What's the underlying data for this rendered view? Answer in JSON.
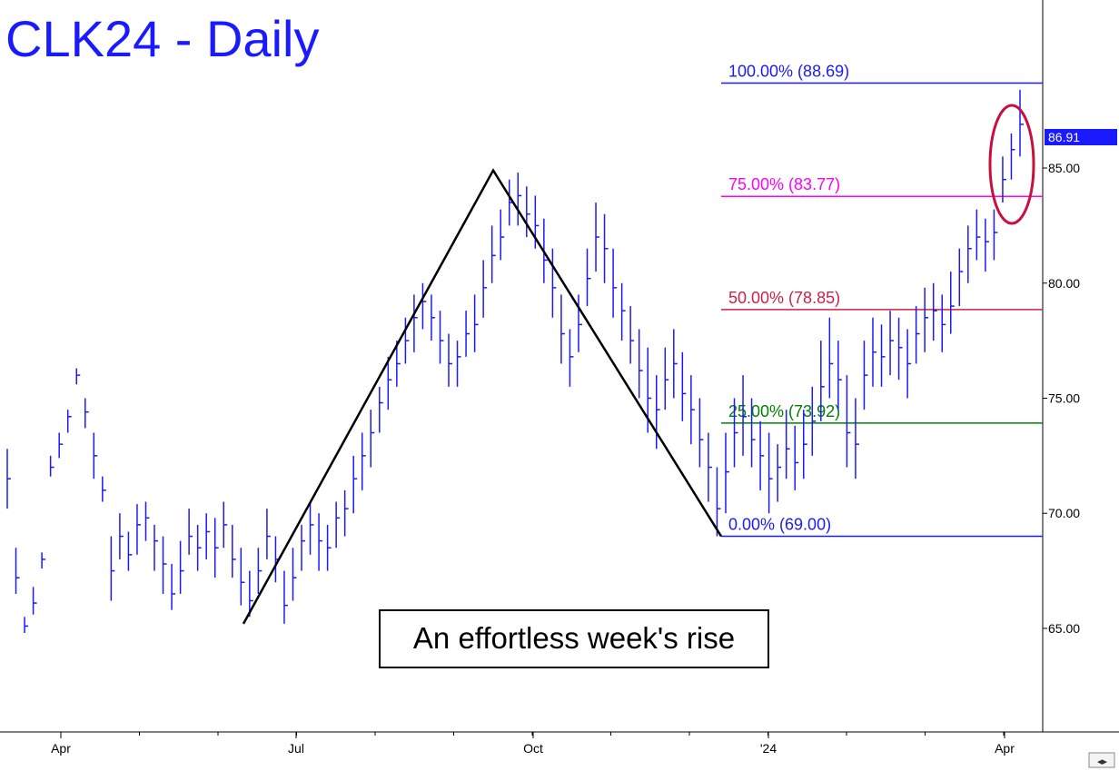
{
  "chart_data": {
    "type": "bar",
    "subtype": "ohlc",
    "title": "CLK24 - Daily",
    "ylim": [
      60.5,
      92.3
    ],
    "price_scale": "right",
    "grid": false,
    "y_ticks": [
      "85.00",
      "80.00",
      "75.00",
      "70.00",
      "65.00"
    ],
    "x_ticks": [
      "Apr",
      "Jul",
      "Oct",
      "'24",
      "Apr"
    ],
    "last_price": "86.91",
    "fib_levels": [
      {
        "label": "100.00% (88.69)",
        "value": 88.69,
        "color": "#1a1aff"
      },
      {
        "label": "75.00% (83.77)",
        "value": 83.77,
        "color": "#ff00ff"
      },
      {
        "label": "50.00% (78.85)",
        "value": 78.85,
        "color": "#cc2244"
      },
      {
        "label": "25.00% (73.92)",
        "value": 73.92,
        "color": "#008000"
      },
      {
        "label": "0.00% (69.00)",
        "value": 69.0,
        "color": "#1a1aff"
      }
    ],
    "annotation": "An effortless week's rise",
    "pattern_points": [
      65.2,
      84.9,
      69.0
    ],
    "series": [
      {
        "color": "#1a1aff",
        "values": [
          [
            72.8,
            70.2,
            71.5
          ],
          [
            68.5,
            66.5,
            67.2
          ],
          [
            65.5,
            64.8,
            65.1
          ],
          [
            66.8,
            65.6,
            66.1
          ],
          [
            68.3,
            67.6,
            68.0
          ],
          [
            72.5,
            71.6,
            72.0
          ],
          [
            73.5,
            72.4,
            73.0
          ],
          [
            74.5,
            73.5,
            74.2
          ],
          [
            76.3,
            75.6,
            76.0
          ],
          [
            75.0,
            73.7,
            74.4
          ],
          [
            73.5,
            71.5,
            72.5
          ],
          [
            71.6,
            70.5,
            71.0
          ],
          [
            69.0,
            66.2,
            67.5
          ],
          [
            70.0,
            68.0,
            69.0
          ],
          [
            69.2,
            67.5,
            68.2
          ],
          [
            70.4,
            68.2,
            69.5
          ],
          [
            70.5,
            68.8,
            69.8
          ],
          [
            69.5,
            67.5,
            68.8
          ],
          [
            69.0,
            66.5,
            67.8
          ],
          [
            67.8,
            65.8,
            66.5
          ],
          [
            68.8,
            66.5,
            67.5
          ],
          [
            70.2,
            68.2,
            69.0
          ],
          [
            69.5,
            67.5,
            68.5
          ],
          [
            70.0,
            68.0,
            69.2
          ],
          [
            69.8,
            67.2,
            68.5
          ],
          [
            70.5,
            68.5,
            69.5
          ],
          [
            69.5,
            67.2,
            68.0
          ],
          [
            68.5,
            66.0,
            67.0
          ],
          [
            67.5,
            65.5,
            66.2
          ],
          [
            68.5,
            66.5,
            67.5
          ],
          [
            70.2,
            68.0,
            69.0
          ],
          [
            69.0,
            67.0,
            68.0
          ],
          [
            67.5,
            65.2,
            66.0
          ],
          [
            68.5,
            66.2,
            67.2
          ],
          [
            69.5,
            67.5,
            68.8
          ],
          [
            70.5,
            68.2,
            69.5
          ],
          [
            70.0,
            67.5,
            68.8
          ],
          [
            69.5,
            67.5,
            68.5
          ],
          [
            70.5,
            68.5,
            69.8
          ],
          [
            71.0,
            69.0,
            70.2
          ],
          [
            72.5,
            70.0,
            71.5
          ],
          [
            73.5,
            71.0,
            72.5
          ],
          [
            74.5,
            72.0,
            73.5
          ],
          [
            75.5,
            73.5,
            74.8
          ],
          [
            76.8,
            74.5,
            75.8
          ],
          [
            77.5,
            75.5,
            76.5
          ],
          [
            78.5,
            76.5,
            77.5
          ],
          [
            79.5,
            77.0,
            78.5
          ],
          [
            80.0,
            78.0,
            79.2
          ],
          [
            79.5,
            77.5,
            78.5
          ],
          [
            78.8,
            76.5,
            77.5
          ],
          [
            77.8,
            75.5,
            76.5
          ],
          [
            77.5,
            75.5,
            76.8
          ],
          [
            78.8,
            76.8,
            77.8
          ],
          [
            79.5,
            77.0,
            78.2
          ],
          [
            81.0,
            78.5,
            79.8
          ],
          [
            82.5,
            80.0,
            81.2
          ],
          [
            83.2,
            81.0,
            82.0
          ],
          [
            84.5,
            82.5,
            83.5
          ],
          [
            84.8,
            82.5,
            83.8
          ],
          [
            84.2,
            82.0,
            83.0
          ],
          [
            83.8,
            81.5,
            82.5
          ],
          [
            82.8,
            80.0,
            81.0
          ],
          [
            81.5,
            78.5,
            79.8
          ],
          [
            79.5,
            76.5,
            77.8
          ],
          [
            78.0,
            75.5,
            76.8
          ],
          [
            79.5,
            77.0,
            78.2
          ],
          [
            81.5,
            79.0,
            80.2
          ],
          [
            83.5,
            80.5,
            82.0
          ],
          [
            83.0,
            80.0,
            81.5
          ],
          [
            81.5,
            78.5,
            79.8
          ],
          [
            80.0,
            77.5,
            78.8
          ],
          [
            79.0,
            76.5,
            77.5
          ],
          [
            78.0,
            75.0,
            76.2
          ],
          [
            77.2,
            73.5,
            75.0
          ],
          [
            76.0,
            72.8,
            74.5
          ],
          [
            77.2,
            74.5,
            75.8
          ],
          [
            78.0,
            75.0,
            76.5
          ],
          [
            77.0,
            74.0,
            75.2
          ],
          [
            76.0,
            73.0,
            74.5
          ],
          [
            75.0,
            72.0,
            73.2
          ],
          [
            73.5,
            70.5,
            72.0
          ],
          [
            72.0,
            69.0,
            70.2
          ],
          [
            73.5,
            70.0,
            71.8
          ],
          [
            75.0,
            72.0,
            73.5
          ],
          [
            76.0,
            72.5,
            74.2
          ],
          [
            75.0,
            72.0,
            73.2
          ],
          [
            74.0,
            71.0,
            72.5
          ],
          [
            73.5,
            70.0,
            71.5
          ],
          [
            73.0,
            70.5,
            72.0
          ],
          [
            74.5,
            71.5,
            72.8
          ],
          [
            73.8,
            71.0,
            72.2
          ],
          [
            74.5,
            71.5,
            73.0
          ],
          [
            75.5,
            72.5,
            74.0
          ],
          [
            77.5,
            74.0,
            75.5
          ],
          [
            78.5,
            75.0,
            76.5
          ],
          [
            77.5,
            74.5,
            75.8
          ],
          [
            76.0,
            72.0,
            73.5
          ],
          [
            75.0,
            71.5,
            73.0
          ],
          [
            77.5,
            74.5,
            76.0
          ],
          [
            78.5,
            75.5,
            77.0
          ],
          [
            78.2,
            75.5,
            76.8
          ],
          [
            78.8,
            76.0,
            77.5
          ],
          [
            78.5,
            75.8,
            77.2
          ],
          [
            78.0,
            75.0,
            76.5
          ],
          [
            79.0,
            76.5,
            77.8
          ],
          [
            79.8,
            77.0,
            78.5
          ],
          [
            80.0,
            77.5,
            78.8
          ],
          [
            79.5,
            77.0,
            78.2
          ],
          [
            80.5,
            77.8,
            79.0
          ],
          [
            81.5,
            79.0,
            80.5
          ],
          [
            82.5,
            80.0,
            81.5
          ],
          [
            83.2,
            81.0,
            82.0
          ],
          [
            82.8,
            80.5,
            81.8
          ],
          [
            83.2,
            81.0,
            82.2
          ],
          [
            85.5,
            83.5,
            84.5
          ],
          [
            86.5,
            84.5,
            85.8
          ],
          [
            88.4,
            85.5,
            86.9
          ]
        ]
      }
    ]
  }
}
